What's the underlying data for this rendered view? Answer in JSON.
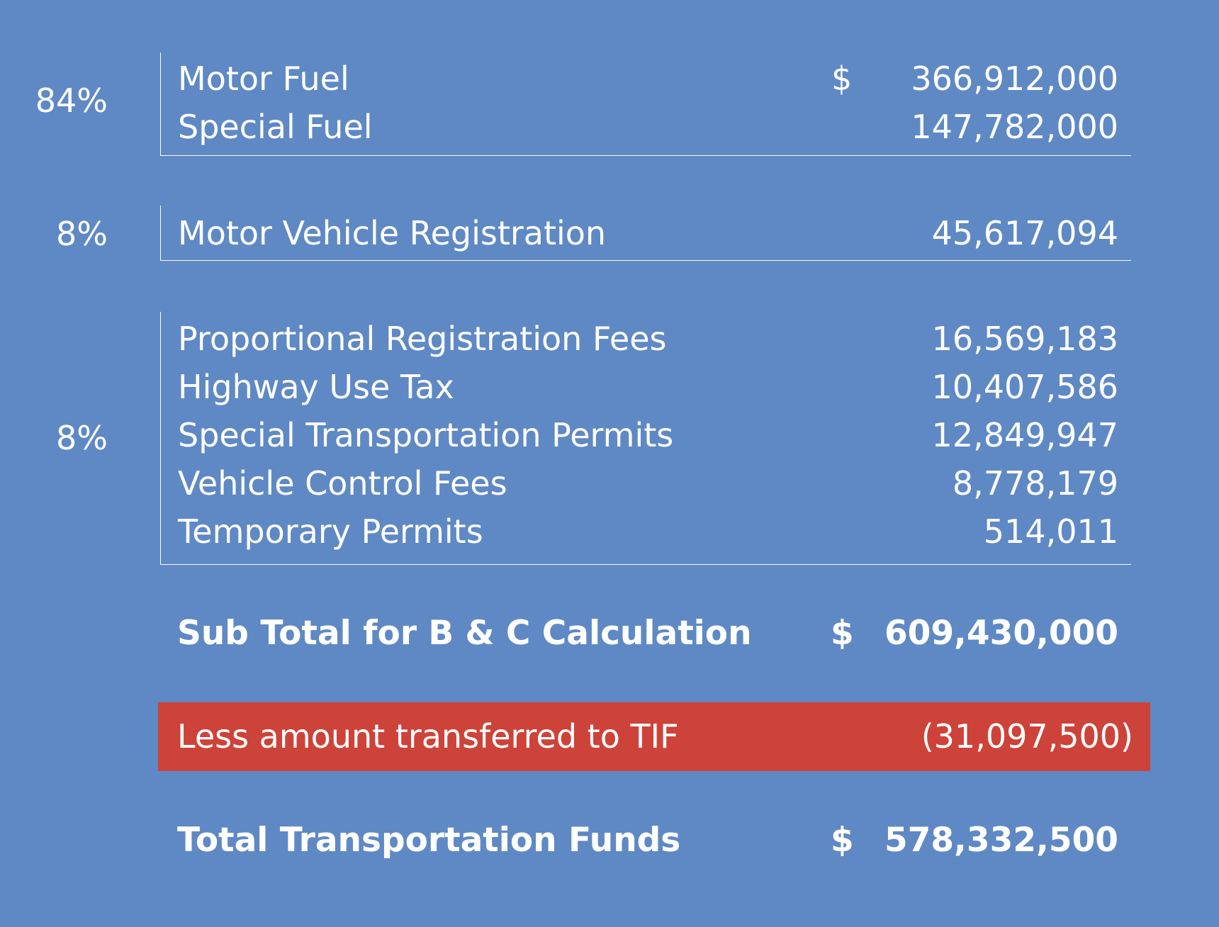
{
  "groups": [
    {
      "percent": "84%",
      "items": [
        {
          "label": "Motor Fuel",
          "currency": "$",
          "amount": "366,912,000"
        },
        {
          "label": "Special Fuel",
          "currency": "",
          "amount": "147,782,000"
        }
      ]
    },
    {
      "percent": "8%",
      "items": [
        {
          "label": "Motor Vehicle Registration",
          "currency": "",
          "amount": "45,617,094"
        }
      ]
    },
    {
      "percent": "8%",
      "items": [
        {
          "label": "Proportional Registration Fees",
          "currency": "",
          "amount": "16,569,183"
        },
        {
          "label": "Highway Use Tax",
          "currency": "",
          "amount": "10,407,586"
        },
        {
          "label": "Special Transportation Permits",
          "currency": "",
          "amount": "12,849,947"
        },
        {
          "label": "Vehicle Control Fees",
          "currency": "",
          "amount": "8,778,179"
        },
        {
          "label": "Temporary Permits",
          "currency": "",
          "amount": "514,011"
        }
      ]
    }
  ],
  "subtotal": {
    "label": "Sub Total for B & C Calculation",
    "currency": "$",
    "amount": "609,430,000"
  },
  "transfer": {
    "label": "Less amount transferred to TIF",
    "amount": "(31,097,500)"
  },
  "total": {
    "label": "Total Transportation Funds",
    "currency": "$",
    "amount": "578,332,500"
  },
  "colors": {
    "background": "#5f89c4",
    "transfer_highlight": "#cd4339",
    "text": "#ffffff"
  }
}
